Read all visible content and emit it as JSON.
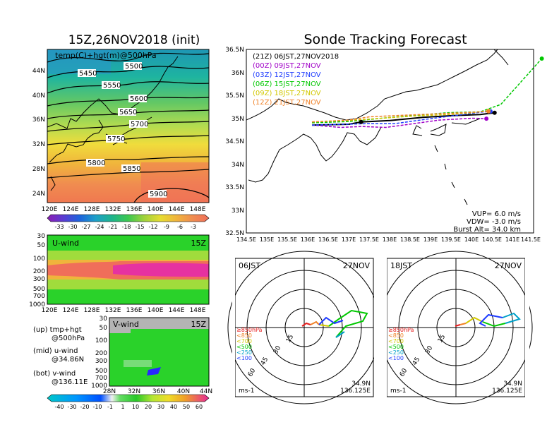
{
  "titles": {
    "left": "15Z,26NOV2018 (init)",
    "right": "Sonde Tracking Forecast"
  },
  "map500": {
    "label": "temp(C)+hgt(m)@500hPa",
    "lon_ticks": [
      "120E",
      "124E",
      "128E",
      "132E",
      "136E",
      "140E",
      "144E",
      "148E"
    ],
    "lat_ticks": [
      "44N",
      "40N",
      "36N",
      "32N",
      "28N",
      "24N"
    ],
    "contour_labels": [
      "5450",
      "5500",
      "5550",
      "5600",
      "5650",
      "5700",
      "5750",
      "5800",
      "5850",
      "5900"
    ]
  },
  "temp_colorbar": [
    "-33",
    "-30",
    "-27",
    "-24",
    "-21",
    "-18",
    "-15",
    "-12",
    "-9",
    "-6",
    "-3"
  ],
  "uwind": {
    "label": "U-wind",
    "time": "15Z",
    "y_ticks": [
      "30",
      "50",
      "100",
      "200",
      "300",
      "500",
      "700",
      "1000"
    ],
    "x_ticks": [
      "120E",
      "124E",
      "128E",
      "132E",
      "136E",
      "140E",
      "144E",
      "148E"
    ]
  },
  "vwind": {
    "label": "V-wind",
    "time": "15Z",
    "y_ticks": [
      "30",
      "50",
      "100",
      "200",
      "300",
      "500",
      "700",
      "1000"
    ],
    "x_ticks": [
      "28N",
      "32N",
      "36N",
      "40N",
      "44N"
    ]
  },
  "legend_notes": {
    "up": [
      "(up) tmp+hgt",
      "@500hPa"
    ],
    "mid": [
      "(mid) u-wind",
      "@34.86N"
    ],
    "bot": [
      "(bot) v-wind",
      "@136.11E"
    ]
  },
  "wind_colorbar": [
    "-40",
    "-30",
    "-20",
    "-10",
    "-1",
    "1",
    "10",
    "20",
    "30",
    "40",
    "50",
    "60"
  ],
  "tracking": {
    "lon_ticks": [
      "134.5E",
      "135E",
      "135.5E",
      "136E",
      "136.5E",
      "137E",
      "137.5E",
      "138E",
      "138.5E",
      "139E",
      "139.5E",
      "140E",
      "140.5E",
      "141E",
      "141.5E"
    ],
    "lat_ticks": [
      "36.5N",
      "36N",
      "35.5N",
      "35N",
      "34.5N",
      "34N",
      "33.5N",
      "33N",
      "32.5N"
    ],
    "legend": [
      {
        "text": "(21Z)  06JST,27NOV2018",
        "color": "#000000"
      },
      {
        "text": "(00Z)  09JST,27NOV",
        "color": "#a000c8"
      },
      {
        "text": "(03Z)  12JST,27NOV",
        "color": "#1e3cff"
      },
      {
        "text": "(06Z)  15JST,27NOV",
        "color": "#00c800"
      },
      {
        "text": "(09Z)  18JST,27NOV",
        "color": "#d2c800"
      },
      {
        "text": "(12Z)  21JST,27NOV",
        "color": "#f08228"
      }
    ],
    "params": [
      "VUP=  6.0  m/s",
      "VDW=  -3.0  m/s",
      "Burst Alt=  34.0  km"
    ]
  },
  "hodographs": [
    {
      "time": "06JST",
      "date": "27NOV",
      "lat": "34.9N",
      "lon": "136.125E",
      "unit": "ms-1",
      "rings": [
        "15",
        "30",
        "45",
        "60"
      ]
    },
    {
      "time": "18JST",
      "date": "27NOV",
      "lat": "34.9N",
      "lon": "136.125E",
      "unit": "ms-1",
      "rings": [
        "15",
        "30",
        "45",
        "60"
      ]
    }
  ],
  "pressure_legend": [
    {
      "text": "≥850hPa",
      "color": "#e61e1e"
    },
    {
      "text": "<850",
      "color": "#f08228"
    },
    {
      "text": "<700",
      "color": "#d2c800"
    },
    {
      "text": "<500",
      "color": "#00c800"
    },
    {
      "text": "<250",
      "color": "#00a0c8"
    },
    {
      "text": "<100",
      "color": "#1e3cff"
    }
  ],
  "chart_data": [
    {
      "type": "heatmap",
      "title": "15Z,26NOV2018 (init)",
      "subtitle": "temp(C)+hgt(m)@500hPa",
      "x_ticks": [
        "120E",
        "124E",
        "128E",
        "132E",
        "136E",
        "140E",
        "144E",
        "148E"
      ],
      "y_ticks": [
        "44N",
        "40N",
        "36N",
        "32N",
        "28N",
        "24N"
      ],
      "colorbar": [
        -33,
        -30,
        -27,
        -24,
        -21,
        -18,
        -15,
        -12,
        -9,
        -6,
        -3
      ],
      "contours_m": [
        5450,
        5500,
        5550,
        5600,
        5650,
        5700,
        5750,
        5800,
        5850,
        5900
      ]
    },
    {
      "type": "heatmap",
      "title": "U-wind",
      "x_ticks": [
        "120E",
        "124E",
        "128E",
        "132E",
        "136E",
        "140E",
        "144E",
        "148E"
      ],
      "y_ticks_hPa": [
        30,
        50,
        100,
        200,
        300,
        500,
        700,
        1000
      ]
    },
    {
      "type": "heatmap",
      "title": "V-wind",
      "x_ticks": [
        "28N",
        "32N",
        "36N",
        "40N",
        "44N"
      ],
      "y_ticks_hPa": [
        30,
        50,
        100,
        200,
        300,
        500,
        700,
        1000
      ],
      "colorbar": [
        -40,
        -30,
        -20,
        -10,
        -1,
        1,
        10,
        20,
        30,
        40,
        50,
        60
      ]
    },
    {
      "type": "line",
      "title": "Sonde Tracking Forecast",
      "xlim": [
        134.5,
        141.5
      ],
      "ylim": [
        32.5,
        36.5
      ],
      "series": [
        {
          "name": "(21Z) 06JST,27NOV2018",
          "color": "#000000",
          "x": [
            136.1,
            137.0,
            137.3,
            138.0,
            138.8,
            139.6,
            140.2,
            140.55
          ],
          "y": [
            34.85,
            34.87,
            34.92,
            34.95,
            35.02,
            35.06,
            35.08,
            35.12
          ]
        },
        {
          "name": "(00Z) 09JST,27NOV",
          "color": "#a000c8",
          "x": [
            136.1,
            136.8,
            137.3,
            137.9,
            138.4,
            139.2,
            140.0,
            140.35
          ],
          "y": [
            34.85,
            34.8,
            34.82,
            34.8,
            34.86,
            34.96,
            35.0,
            34.99
          ]
        },
        {
          "name": "(03Z) 12JST,27NOV",
          "color": "#1e3cff",
          "x": [
            136.1,
            136.9,
            137.4,
            138.1,
            138.9,
            139.6,
            140.2,
            140.45
          ],
          "y": [
            34.85,
            34.87,
            34.88,
            34.88,
            34.98,
            35.06,
            35.13,
            35.15
          ]
        },
        {
          "name": "(06Z) 15JST,27NOV",
          "color": "#00c800",
          "x": [
            136.1,
            137.0,
            137.8,
            138.6,
            139.4,
            140.2,
            140.7,
            141.3,
            141.7
          ],
          "y": [
            34.9,
            34.93,
            35.0,
            35.06,
            35.12,
            35.14,
            35.3,
            35.9,
            36.3
          ]
        },
        {
          "name": "(09Z) 18JST,27NOV",
          "color": "#d2c800",
          "x": [
            136.1,
            137.0,
            137.8,
            138.6,
            139.4,
            140.0,
            140.4
          ],
          "y": [
            34.92,
            34.95,
            35.0,
            35.05,
            35.08,
            35.12,
            35.16
          ]
        },
        {
          "name": "(12Z) 21JST,27NOV",
          "color": "#f08228",
          "x": [
            136.1,
            137.0,
            137.5,
            138.2,
            139.0,
            139.8,
            140.4
          ],
          "y": [
            34.92,
            34.96,
            35.03,
            35.06,
            35.09,
            35.12,
            35.15
          ]
        }
      ],
      "annotations": [
        "VUP= 6.0 m/s",
        "VDW= -3.0 m/s",
        "Burst Alt= 34.0 km"
      ]
    }
  ]
}
